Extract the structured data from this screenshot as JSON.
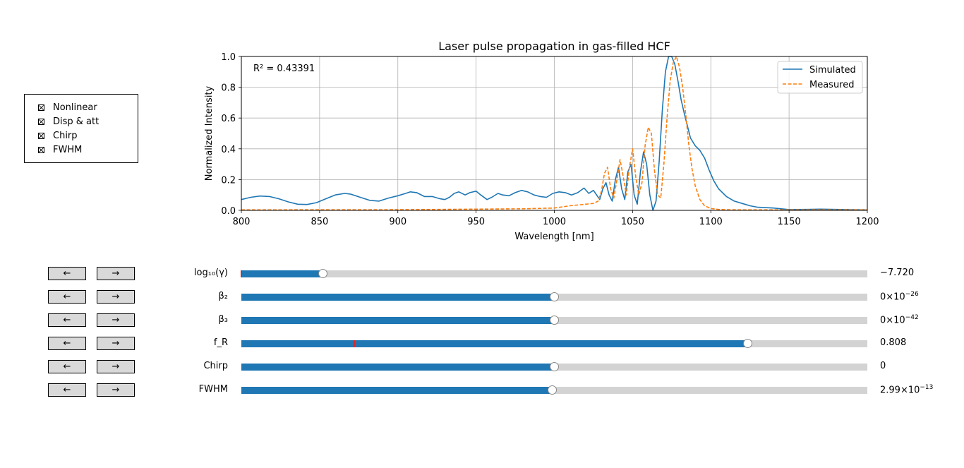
{
  "checkboxes": [
    {
      "label": "Nonlinear",
      "checked": true
    },
    {
      "label": "Disp & att",
      "checked": true
    },
    {
      "label": "Chirp",
      "checked": true
    },
    {
      "label": "FWHM",
      "checked": true
    }
  ],
  "chart_data": {
    "type": "line",
    "title": "Laser pulse propagation in gas-filled HCF",
    "xlabel": "Wavelength [nm]",
    "ylabel": "Normalized Intensity",
    "xlim": [
      800,
      1200
    ],
    "ylim": [
      0,
      1.0
    ],
    "xticks": [
      "800",
      "850",
      "900",
      "950",
      "1000",
      "1050",
      "1100",
      "1150",
      "1200"
    ],
    "yticks": [
      "0.0",
      "0.2",
      "0.4",
      "0.6",
      "0.8",
      "1.0"
    ],
    "grid": true,
    "legend_position": "top-right",
    "annotation": "R² = 0.43391",
    "series": [
      {
        "name": "Simulated",
        "color": "#1f77b4",
        "style": "solid",
        "x": [
          800,
          806,
          812,
          818,
          824,
          830,
          836,
          842,
          848,
          854,
          860,
          866,
          870,
          876,
          882,
          888,
          894,
          900,
          905,
          908,
          912,
          917,
          922,
          927,
          930,
          933,
          936,
          939,
          943,
          946,
          950,
          953,
          957,
          960,
          964,
          967,
          971,
          975,
          979,
          983,
          987,
          991,
          995,
          999,
          1003,
          1007,
          1011,
          1015,
          1019,
          1022,
          1025,
          1027,
          1029,
          1031,
          1033,
          1035,
          1037,
          1039,
          1041,
          1043,
          1045,
          1047,
          1049,
          1051,
          1053,
          1055,
          1057,
          1059,
          1061,
          1063,
          1065,
          1067,
          1069,
          1071,
          1073,
          1075,
          1077,
          1079,
          1081,
          1083,
          1085,
          1087,
          1090,
          1093,
          1096,
          1099,
          1102,
          1105,
          1110,
          1115,
          1120,
          1125,
          1130,
          1140,
          1150,
          1160,
          1170,
          1180,
          1190,
          1200
        ],
        "y": [
          0.07,
          0.085,
          0.093,
          0.09,
          0.075,
          0.055,
          0.04,
          0.038,
          0.05,
          0.075,
          0.1,
          0.11,
          0.105,
          0.085,
          0.065,
          0.06,
          0.08,
          0.095,
          0.11,
          0.12,
          0.115,
          0.09,
          0.09,
          0.075,
          0.07,
          0.085,
          0.11,
          0.12,
          0.1,
          0.115,
          0.125,
          0.1,
          0.07,
          0.085,
          0.11,
          0.1,
          0.095,
          0.115,
          0.13,
          0.12,
          0.1,
          0.09,
          0.085,
          0.11,
          0.12,
          0.115,
          0.1,
          0.115,
          0.145,
          0.11,
          0.13,
          0.1,
          0.07,
          0.14,
          0.18,
          0.1,
          0.06,
          0.2,
          0.28,
          0.14,
          0.07,
          0.25,
          0.3,
          0.1,
          0.04,
          0.25,
          0.38,
          0.3,
          0.1,
          0.0,
          0.06,
          0.32,
          0.65,
          0.9,
          1.0,
          1.0,
          0.95,
          0.84,
          0.72,
          0.63,
          0.55,
          0.47,
          0.42,
          0.39,
          0.34,
          0.26,
          0.19,
          0.14,
          0.09,
          0.06,
          0.045,
          0.03,
          0.02,
          0.015,
          0.005,
          0.006,
          0.008,
          0.006,
          0.004,
          0.003
        ]
      },
      {
        "name": "Measured",
        "color": "#ff7f0e",
        "style": "dashed",
        "x": [
          800,
          900,
          980,
          1000,
          1010,
          1020,
          1025,
          1028,
          1030,
          1032,
          1034,
          1036,
          1038,
          1040,
          1042,
          1044,
          1046,
          1048,
          1050,
          1052,
          1054,
          1056,
          1058,
          1060,
          1062,
          1064,
          1066,
          1068,
          1070,
          1072,
          1074,
          1076,
          1078,
          1080,
          1082,
          1084,
          1086,
          1088,
          1090,
          1093,
          1096,
          1100,
          1105,
          1110,
          1120,
          1150,
          1200
        ],
        "y": [
          0.003,
          0.004,
          0.01,
          0.015,
          0.03,
          0.04,
          0.045,
          0.06,
          0.12,
          0.24,
          0.28,
          0.14,
          0.08,
          0.2,
          0.33,
          0.22,
          0.1,
          0.28,
          0.4,
          0.22,
          0.1,
          0.18,
          0.42,
          0.54,
          0.5,
          0.26,
          0.1,
          0.08,
          0.3,
          0.6,
          0.84,
          0.96,
          1.0,
          0.93,
          0.8,
          0.62,
          0.42,
          0.27,
          0.16,
          0.07,
          0.03,
          0.012,
          0.006,
          0.004,
          0.003,
          0.003,
          0.003
        ]
      }
    ]
  },
  "sliders": [
    {
      "label": "log₁₀(γ)",
      "fraction": 0.131,
      "init_marker": 0.0,
      "value": "−7.720",
      "exp": ""
    },
    {
      "label": "β₂",
      "fraction": 0.5,
      "value": "0×10",
      "exp": "−26"
    },
    {
      "label": "β₃",
      "fraction": 0.5,
      "value": "0×10",
      "exp": "−42"
    },
    {
      "label": "f_R",
      "fraction": 0.809,
      "init_marker": 0.18,
      "value": "0.808",
      "exp": ""
    },
    {
      "label": "Chirp",
      "fraction": 0.5,
      "value": "0",
      "exp": ""
    },
    {
      "label": "FWHM",
      "fraction": 0.497,
      "value": "2.99×10",
      "exp": "−13"
    }
  ],
  "buttons": {
    "left_label": "←",
    "right_label": "→"
  },
  "colors": {
    "accent": "#1f77b4",
    "secondary": "#ff7f0e",
    "track": "#d3d3d3",
    "init_marker": "#d62728"
  }
}
